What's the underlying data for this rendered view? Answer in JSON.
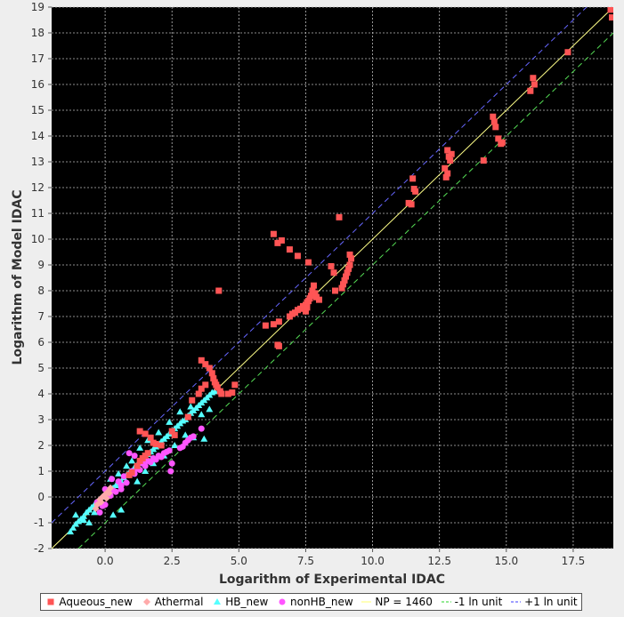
{
  "chart_data": {
    "type": "scatter",
    "title": "",
    "xlabel": "Logarithm of Experimental IDAC",
    "ylabel": "Logarithm of Model IDAC",
    "xlim": [
      -2,
      19
    ],
    "ylim": [
      -2,
      19
    ],
    "xticks": [
      0.0,
      2.5,
      5.0,
      7.5,
      10.0,
      12.5,
      15.0,
      17.5
    ],
    "xtick_labels": [
      "0.0",
      "2.5",
      "5.0",
      "7.5",
      "10.0",
      "12.5",
      "15.0",
      "17.5"
    ],
    "yticks": [
      -2,
      -1,
      0,
      1,
      2,
      3,
      4,
      5,
      6,
      7,
      8,
      9,
      10,
      11,
      12,
      13,
      14,
      15,
      16,
      17,
      18,
      19
    ],
    "ytick_labels": [
      "-2",
      "-1",
      "0",
      "1",
      "2",
      "3",
      "4",
      "5",
      "6",
      "7",
      "8",
      "9",
      "10",
      "11",
      "12",
      "13",
      "14",
      "15",
      "16",
      "17",
      "18",
      "19"
    ],
    "grid": true,
    "legend_position": "bottom",
    "background": "#000000",
    "series": [
      {
        "name": "Aqueous_new",
        "marker": "square",
        "color": "#ff5555",
        "points": [
          [
            0.9,
            0.85
          ],
          [
            1.0,
            0.95
          ],
          [
            1.2,
            1.2
          ],
          [
            1.3,
            1.4
          ],
          [
            1.4,
            1.5
          ],
          [
            1.5,
            1.6
          ],
          [
            1.6,
            1.7
          ],
          [
            1.3,
            2.55
          ],
          [
            1.5,
            2.45
          ],
          [
            1.7,
            2.3
          ],
          [
            1.8,
            2.1
          ],
          [
            1.9,
            2.05
          ],
          [
            2.1,
            2.0
          ],
          [
            2.5,
            2.55
          ],
          [
            2.6,
            2.4
          ],
          [
            3.1,
            3.1
          ],
          [
            3.25,
            3.75
          ],
          [
            3.5,
            4.0
          ],
          [
            3.6,
            4.2
          ],
          [
            3.75,
            4.35
          ],
          [
            3.6,
            5.3
          ],
          [
            3.75,
            5.15
          ],
          [
            3.9,
            5.0
          ],
          [
            4.0,
            4.8
          ],
          [
            4.05,
            4.6
          ],
          [
            4.1,
            4.45
          ],
          [
            4.15,
            4.35
          ],
          [
            4.2,
            4.25
          ],
          [
            4.3,
            4.1
          ],
          [
            4.35,
            4.0
          ],
          [
            4.6,
            4.0
          ],
          [
            4.75,
            4.05
          ],
          [
            4.85,
            4.35
          ],
          [
            4.25,
            8.0
          ],
          [
            6.0,
            6.65
          ],
          [
            6.3,
            6.7
          ],
          [
            6.5,
            6.8
          ],
          [
            6.45,
            5.9
          ],
          [
            6.5,
            5.85
          ],
          [
            6.3,
            10.2
          ],
          [
            6.45,
            9.85
          ],
          [
            6.6,
            9.95
          ],
          [
            6.9,
            9.6
          ],
          [
            7.2,
            9.35
          ],
          [
            7.6,
            9.1
          ],
          [
            6.9,
            7.0
          ],
          [
            7.0,
            7.1
          ],
          [
            7.1,
            7.15
          ],
          [
            7.2,
            7.25
          ],
          [
            7.3,
            7.3
          ],
          [
            7.4,
            7.4
          ],
          [
            7.5,
            7.45
          ],
          [
            7.55,
            7.55
          ],
          [
            7.6,
            7.6
          ],
          [
            7.65,
            7.7
          ],
          [
            7.7,
            7.8
          ],
          [
            7.75,
            8.0
          ],
          [
            7.8,
            8.2
          ],
          [
            7.85,
            7.9
          ],
          [
            7.9,
            7.75
          ],
          [
            8.0,
            7.65
          ],
          [
            7.5,
            7.2
          ],
          [
            7.55,
            7.35
          ],
          [
            8.45,
            8.95
          ],
          [
            8.55,
            8.7
          ],
          [
            8.6,
            8.0
          ],
          [
            8.75,
            10.85
          ],
          [
            8.85,
            8.1
          ],
          [
            8.9,
            8.25
          ],
          [
            8.95,
            8.4
          ],
          [
            9.0,
            8.55
          ],
          [
            9.05,
            8.7
          ],
          [
            9.1,
            8.85
          ],
          [
            9.15,
            9.0
          ],
          [
            9.2,
            9.25
          ],
          [
            9.15,
            9.4
          ],
          [
            11.35,
            11.4
          ],
          [
            11.45,
            11.35
          ],
          [
            11.5,
            12.35
          ],
          [
            11.55,
            11.95
          ],
          [
            11.6,
            11.85
          ],
          [
            12.7,
            12.75
          ],
          [
            12.8,
            13.45
          ],
          [
            12.85,
            13.2
          ],
          [
            12.9,
            13.05
          ],
          [
            12.75,
            12.4
          ],
          [
            12.8,
            12.55
          ],
          [
            12.95,
            13.3
          ],
          [
            14.15,
            13.05
          ],
          [
            14.5,
            14.75
          ],
          [
            14.55,
            14.55
          ],
          [
            14.6,
            14.35
          ],
          [
            14.7,
            13.9
          ],
          [
            14.8,
            13.7
          ],
          [
            14.85,
            13.75
          ],
          [
            15.9,
            15.75
          ],
          [
            16.0,
            16.25
          ],
          [
            16.05,
            16.0
          ],
          [
            17.3,
            17.25
          ],
          [
            18.9,
            18.9
          ],
          [
            18.95,
            18.6
          ]
        ]
      },
      {
        "name": "Athermal",
        "marker": "diamond",
        "color": "#ffaaaa",
        "points": [
          [
            -0.3,
            -0.3
          ],
          [
            -0.2,
            -0.1
          ],
          [
            -0.1,
            0.0
          ],
          [
            0.0,
            0.1
          ],
          [
            0.1,
            0.2
          ],
          [
            -0.35,
            -0.45
          ],
          [
            0.2,
            0.35
          ],
          [
            0.05,
            -0.05
          ],
          [
            -0.15,
            -0.2
          ],
          [
            0.15,
            0.15
          ]
        ]
      },
      {
        "name": "HB_new",
        "marker": "triangle",
        "color": "#55ffff",
        "points": [
          [
            -1.3,
            -1.35
          ],
          [
            -1.2,
            -1.2
          ],
          [
            -1.1,
            -1.05
          ],
          [
            -1.0,
            -0.95
          ],
          [
            -0.9,
            -0.85
          ],
          [
            -0.8,
            -0.75
          ],
          [
            -0.7,
            -0.6
          ],
          [
            -0.6,
            -0.5
          ],
          [
            -0.5,
            -0.4
          ],
          [
            -0.4,
            -0.3
          ],
          [
            -0.3,
            -0.25
          ],
          [
            -0.2,
            -0.1
          ],
          [
            -0.1,
            0.0
          ],
          [
            0.0,
            0.05
          ],
          [
            0.1,
            0.15
          ],
          [
            0.2,
            0.3
          ],
          [
            0.3,
            0.35
          ],
          [
            0.4,
            0.45
          ],
          [
            0.5,
            0.55
          ],
          [
            0.6,
            0.6
          ],
          [
            0.7,
            0.75
          ],
          [
            0.8,
            0.85
          ],
          [
            0.9,
            0.95
          ],
          [
            1.0,
            1.0
          ],
          [
            1.1,
            1.15
          ],
          [
            1.2,
            1.25
          ],
          [
            1.3,
            1.3
          ],
          [
            1.4,
            1.45
          ],
          [
            1.5,
            1.55
          ],
          [
            1.6,
            1.65
          ],
          [
            1.7,
            1.75
          ],
          [
            1.8,
            1.85
          ],
          [
            1.9,
            1.95
          ],
          [
            2.0,
            2.05
          ],
          [
            2.1,
            2.15
          ],
          [
            2.2,
            2.25
          ],
          [
            2.3,
            2.35
          ],
          [
            2.4,
            2.45
          ],
          [
            2.5,
            2.55
          ],
          [
            2.6,
            2.65
          ],
          [
            2.7,
            2.75
          ],
          [
            2.8,
            2.85
          ],
          [
            2.9,
            2.95
          ],
          [
            3.0,
            3.0
          ],
          [
            3.1,
            3.15
          ],
          [
            3.2,
            3.25
          ],
          [
            3.3,
            3.35
          ],
          [
            3.4,
            3.45
          ],
          [
            3.5,
            3.55
          ],
          [
            3.6,
            3.65
          ],
          [
            3.7,
            3.75
          ],
          [
            3.8,
            3.85
          ],
          [
            3.9,
            3.95
          ],
          [
            4.0,
            4.05
          ],
          [
            4.1,
            4.1
          ],
          [
            -1.1,
            -0.7
          ],
          [
            -0.8,
            -0.9
          ],
          [
            -0.6,
            -1.0
          ],
          [
            -0.4,
            -0.6
          ],
          [
            0.3,
            -0.7
          ],
          [
            0.6,
            -0.5
          ],
          [
            1.0,
            1.4
          ],
          [
            1.3,
            1.9
          ],
          [
            1.6,
            2.2
          ],
          [
            2.0,
            2.5
          ],
          [
            2.4,
            2.9
          ],
          [
            2.8,
            3.3
          ],
          [
            3.2,
            3.5
          ],
          [
            1.2,
            0.6
          ],
          [
            1.5,
            1.0
          ],
          [
            1.8,
            1.3
          ],
          [
            2.2,
            1.6
          ],
          [
            2.6,
            2.0
          ],
          [
            3.0,
            2.4
          ],
          [
            3.3,
            2.3
          ],
          [
            3.7,
            2.25
          ],
          [
            3.6,
            3.2
          ],
          [
            3.9,
            3.4
          ],
          [
            0.8,
            1.2
          ],
          [
            0.5,
            0.9
          ],
          [
            0.2,
            0.7
          ]
        ]
      },
      {
        "name": "nonHB_new",
        "marker": "circle",
        "color": "#ff55ff",
        "points": [
          [
            -0.2,
            -0.6
          ],
          [
            -0.1,
            -0.35
          ],
          [
            0.0,
            0.3
          ],
          [
            0.1,
            0.1
          ],
          [
            0.2,
            0.05
          ],
          [
            0.3,
            0.25
          ],
          [
            0.25,
            0.7
          ],
          [
            0.5,
            0.6
          ],
          [
            0.6,
            0.45
          ],
          [
            0.7,
            0.8
          ],
          [
            0.8,
            0.55
          ],
          [
            0.9,
            0.85
          ],
          [
            1.0,
            1.0
          ],
          [
            1.1,
            0.9
          ],
          [
            1.2,
            1.1
          ],
          [
            1.3,
            1.05
          ],
          [
            1.4,
            1.3
          ],
          [
            1.5,
            1.2
          ],
          [
            1.6,
            1.4
          ],
          [
            1.7,
            1.35
          ],
          [
            1.8,
            1.5
          ],
          [
            1.9,
            1.45
          ],
          [
            2.0,
            1.6
          ],
          [
            2.1,
            1.55
          ],
          [
            2.2,
            1.7
          ],
          [
            2.3,
            1.75
          ],
          [
            2.4,
            1.8
          ],
          [
            2.5,
            1.3
          ],
          [
            2.45,
            1.0
          ],
          [
            2.8,
            1.9
          ],
          [
            2.9,
            1.95
          ],
          [
            3.0,
            2.1
          ],
          [
            3.1,
            2.2
          ],
          [
            3.2,
            2.3
          ],
          [
            3.3,
            2.35
          ],
          [
            3.6,
            2.65
          ],
          [
            0.4,
            0.2
          ],
          [
            0.6,
            0.3
          ],
          [
            0.9,
            1.7
          ],
          [
            1.1,
            1.6
          ],
          [
            -0.3,
            -0.2
          ],
          [
            0.0,
            -0.3
          ]
        ]
      },
      {
        "name": "NP = 1460",
        "type": "line",
        "color": "#ffff88",
        "dash": "solid",
        "x": [
          -2,
          19
        ],
        "y": [
          -2,
          19
        ]
      },
      {
        "name": "-1 ln unit",
        "type": "line",
        "color": "#55dd55",
        "dash": "dashed",
        "x": [
          -1,
          19
        ],
        "y": [
          -2,
          18
        ]
      },
      {
        "name": "+1 ln unit",
        "type": "line",
        "color": "#6666ff",
        "dash": "dashed",
        "x": [
          -2,
          18
        ],
        "y": [
          -1,
          19
        ]
      }
    ]
  }
}
